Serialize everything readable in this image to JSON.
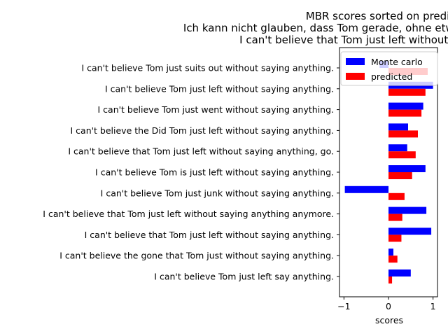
{
  "chart_data": {
    "type": "bar",
    "orientation": "horizontal",
    "title_lines": [
      "MBR scores sorted on predicted",
      "Ich kann nicht glauben, dass Tom gerade, ohne etwas zu sagen, gegangen ist.",
      "I can't believe that Tom just left without saying anything."
    ],
    "xlabel": "scores",
    "xlim": [
      -1.1,
      1.1
    ],
    "xticks": [
      -1,
      0,
      1
    ],
    "xtick_labels": [
      "−1",
      "0",
      "1"
    ],
    "categories": [
      "I can't believe Tom just suits out without saying anything.",
      "I can't believe Tom just left without saying anything.",
      "I can't believe Tom just went without saying anything.",
      "I can't believe the Did Tom just left without saying anything.",
      "I can't believe that Tom just left without saying anything, go.",
      "I can't believe Tom is just left without saying anything.",
      "I can't believe Tom just junk without saying anything.",
      "I can't believe that Tom just left without saying anything anymore.",
      "I can't believe that Tom just left without saying anything.",
      "I can't believe the gone that Tom just without saying anything.",
      "I can't believe Tom just left say anything."
    ],
    "series": [
      {
        "name": "Monte carlo",
        "color": "#0000ff",
        "values": [
          -0.2,
          1.0,
          0.78,
          0.44,
          0.42,
          0.83,
          -0.98,
          0.85,
          0.96,
          0.11,
          0.5
        ]
      },
      {
        "name": "predicted",
        "color": "#ff0000",
        "values": [
          0.88,
          0.83,
          0.74,
          0.66,
          0.61,
          0.53,
          0.36,
          0.31,
          0.29,
          0.2,
          0.08
        ]
      }
    ],
    "legend_position": "top-right",
    "grid": false
  }
}
